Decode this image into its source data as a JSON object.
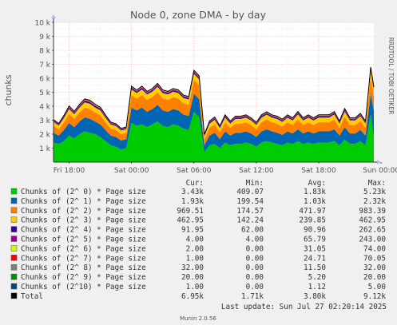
{
  "chart_data": {
    "type": "area",
    "title": "Node 0, zone DMA - by day",
    "ylabel": "chunks",
    "watermark": "RRDTOOL / TOBI OETIKER",
    "footer": "Munin 2.0.56",
    "ylim": [
      0,
      10000
    ],
    "yticks": [
      {
        "v": 1000,
        "label": "1 k"
      },
      {
        "v": 2000,
        "label": "2 k"
      },
      {
        "v": 3000,
        "label": "3 k"
      },
      {
        "v": 4000,
        "label": "4 k"
      },
      {
        "v": 5000,
        "label": "5 k"
      },
      {
        "v": 6000,
        "label": "6 k"
      },
      {
        "v": 7000,
        "label": "7 k"
      },
      {
        "v": 8000,
        "label": "8 k"
      },
      {
        "v": 9000,
        "label": "9 k"
      },
      {
        "v": 10000,
        "label": "10 k"
      }
    ],
    "x_range_hours": [
      16.5,
      47.3
    ],
    "xticks": [
      {
        "h": 18,
        "label": "Fri 18:00"
      },
      {
        "h": 24,
        "label": "Sat 00:00"
      },
      {
        "h": 30,
        "label": "Sat 06:00"
      },
      {
        "h": 36,
        "label": "Sat 12:00"
      },
      {
        "h": 42,
        "label": "Sat 18:00"
      },
      {
        "h": 48,
        "label": "Sun 00:00"
      }
    ],
    "x": [
      16.5,
      17,
      17.5,
      18,
      18.5,
      19,
      19.5,
      20,
      20.5,
      21,
      21.5,
      22,
      22.5,
      23,
      23.5,
      24,
      24.5,
      25,
      25.5,
      26,
      26.5,
      27,
      27.5,
      28,
      28.5,
      29,
      29.5,
      30,
      30.5,
      31,
      31.5,
      32,
      32.5,
      33,
      33.5,
      34,
      34.5,
      35,
      35.5,
      36,
      36.5,
      37,
      37.5,
      38,
      38.5,
      39,
      39.5,
      40,
      40.5,
      41,
      41.5,
      42,
      42.5,
      43,
      43.5,
      44,
      44.5,
      45,
      45.5,
      46,
      46.5,
      47,
      47.3
    ],
    "series": [
      {
        "name": "Chunks of (2^ 0) * Page size",
        "color": "#00cc00",
        "values": [
          1400,
          1300,
          1500,
          1900,
          1700,
          2000,
          2200,
          2100,
          2000,
          1800,
          1500,
          1200,
          1100,
          900,
          1000,
          2800,
          2600,
          2700,
          2500,
          2700,
          2900,
          2600,
          2500,
          2700,
          2600,
          2400,
          2300,
          3600,
          3200,
          700,
          1200,
          1300,
          1000,
          1400,
          1200,
          1300,
          1300,
          1400,
          1300,
          1100,
          1400,
          1500,
          1400,
          1300,
          1200,
          1400,
          1300,
          1500,
          1300,
          1400,
          1300,
          1400,
          1400,
          1400,
          1500,
          1200,
          1600,
          1300,
          1300,
          1500,
          1200,
          3400,
          1800
        ]
      },
      {
        "name": "Chunks of (2^ 1) * Page size",
        "color": "#0066b3",
        "values": [
          700,
          600,
          800,
          900,
          800,
          900,
          1000,
          1000,
          900,
          900,
          800,
          700,
          700,
          650,
          650,
          1100,
          1100,
          1200,
          1100,
          1100,
          1200,
          1100,
          1100,
          1100,
          1100,
          1000,
          1000,
          1300,
          1300,
          500,
          700,
          800,
          650,
          800,
          700,
          800,
          800,
          800,
          750,
          700,
          800,
          850,
          800,
          800,
          750,
          800,
          750,
          850,
          750,
          800,
          750,
          800,
          800,
          800,
          850,
          700,
          900,
          750,
          750,
          800,
          700,
          1500,
          1900
        ]
      },
      {
        "name": "Chunks of (2^ 2) * Page size",
        "color": "#ff8000",
        "values": [
          500,
          450,
          550,
          650,
          600,
          650,
          700,
          700,
          650,
          650,
          550,
          500,
          500,
          450,
          450,
          900,
          850,
          900,
          850,
          850,
          900,
          850,
          850,
          850,
          850,
          800,
          800,
          1000,
          1000,
          400,
          550,
          600,
          500,
          650,
          550,
          650,
          650,
          650,
          600,
          550,
          650,
          700,
          650,
          650,
          600,
          650,
          600,
          700,
          600,
          650,
          600,
          650,
          650,
          650,
          700,
          550,
          750,
          600,
          600,
          650,
          550,
          1200,
          1000
        ]
      },
      {
        "name": "Chunks of (2^ 3) * Page size",
        "color": "#ffcc00",
        "values": [
          280,
          260,
          300,
          350,
          330,
          360,
          380,
          380,
          360,
          360,
          320,
          290,
          280,
          260,
          260,
          400,
          390,
          400,
          390,
          390,
          400,
          390,
          390,
          390,
          390,
          380,
          380,
          420,
          420,
          240,
          310,
          330,
          280,
          340,
          310,
          340,
          340,
          340,
          330,
          310,
          340,
          350,
          340,
          340,
          330,
          340,
          330,
          360,
          330,
          340,
          330,
          340,
          340,
          340,
          360,
          310,
          370,
          330,
          330,
          340,
          310,
          460,
          440
        ]
      },
      {
        "name": "Chunks of (2^ 4) * Page size",
        "color": "#330099",
        "values": [
          70,
          65,
          75,
          85,
          80,
          88,
          95,
          95,
          90,
          90,
          82,
          74,
          72,
          68,
          68,
          95,
          92,
          95,
          92,
          92,
          95,
          92,
          92,
          92,
          92,
          90,
          90,
          98,
          98,
          66,
          78,
          82,
          72,
          84,
          78,
          84,
          84,
          84,
          82,
          78,
          84,
          86,
          84,
          84,
          82,
          84,
          82,
          88,
          82,
          84,
          82,
          84,
          84,
          84,
          88,
          78,
          90,
          82,
          82,
          84,
          78,
          100,
          95
        ]
      },
      {
        "name": "Chunks of (2^ 5) * Page size",
        "color": "#990099",
        "values": [
          40,
          45,
          50,
          60,
          55,
          60,
          70,
          70,
          65,
          60,
          55,
          50,
          45,
          40,
          40,
          60,
          60,
          65,
          60,
          60,
          65,
          60,
          60,
          60,
          60,
          55,
          55,
          70,
          70,
          30,
          45,
          50,
          40,
          50,
          45,
          50,
          50,
          50,
          48,
          45,
          50,
          52,
          50,
          50,
          48,
          50,
          48,
          55,
          48,
          50,
          48,
          50,
          50,
          50,
          55,
          45,
          58,
          48,
          48,
          50,
          45,
          60,
          60
        ]
      },
      {
        "name": "Chunks of (2^ 6) * Page size",
        "color": "#ccff00",
        "values": [
          20,
          18,
          22,
          28,
          25,
          28,
          32,
          32,
          30,
          28,
          25,
          22,
          20,
          18,
          18,
          30,
          28,
          30,
          28,
          28,
          30,
          28,
          28,
          28,
          28,
          26,
          26,
          34,
          34,
          14,
          22,
          24,
          20,
          24,
          22,
          24,
          24,
          24,
          23,
          22,
          24,
          25,
          24,
          24,
          23,
          24,
          23,
          26,
          23,
          24,
          23,
          24,
          24,
          24,
          26,
          22,
          28,
          23,
          23,
          24,
          22,
          30,
          30
        ]
      },
      {
        "name": "Chunks of (2^ 7) * Page size",
        "color": "#ff0000",
        "values": [
          15,
          14,
          17,
          22,
          20,
          22,
          25,
          25,
          24,
          22,
          20,
          17,
          15,
          14,
          14,
          24,
          22,
          24,
          22,
          22,
          24,
          22,
          22,
          22,
          22,
          20,
          20,
          26,
          26,
          10,
          17,
          18,
          15,
          18,
          17,
          18,
          18,
          18,
          17,
          17,
          18,
          19,
          18,
          18,
          17,
          18,
          17,
          20,
          17,
          18,
          17,
          18,
          18,
          18,
          20,
          17,
          21,
          17,
          17,
          18,
          17,
          24,
          24
        ]
      },
      {
        "name": "Chunks of (2^ 8) * Page size",
        "color": "#808080",
        "values": [
          10,
          10,
          12,
          14,
          13,
          14,
          15,
          15,
          14,
          14,
          13,
          12,
          11,
          10,
          10,
          15,
          14,
          15,
          14,
          14,
          15,
          14,
          14,
          14,
          14,
          13,
          13,
          16,
          16,
          8,
          12,
          12,
          10,
          12,
          12,
          12,
          12,
          12,
          12,
          12,
          12,
          13,
          12,
          12,
          12,
          12,
          12,
          13,
          12,
          12,
          12,
          12,
          12,
          12,
          13,
          12,
          14,
          12,
          12,
          12,
          12,
          16,
          16
        ]
      },
      {
        "name": "Chunks of (2^ 9) * Page size",
        "color": "#008f00",
        "values": [
          5,
          5,
          5,
          6,
          6,
          6,
          6,
          6,
          6,
          6,
          6,
          5,
          5,
          5,
          5,
          6,
          6,
          6,
          6,
          6,
          6,
          6,
          6,
          6,
          6,
          6,
          6,
          6,
          6,
          4,
          5,
          5,
          5,
          5,
          5,
          5,
          5,
          5,
          5,
          5,
          5,
          5,
          5,
          5,
          5,
          5,
          5,
          5,
          5,
          5,
          5,
          5,
          5,
          5,
          5,
          5,
          5,
          5,
          5,
          5,
          5,
          6,
          6
        ]
      },
      {
        "name": "Chunks of (2^10) * Page size",
        "color": "#00487d",
        "values": [
          1,
          1,
          1,
          2,
          2,
          2,
          2,
          2,
          2,
          2,
          2,
          1,
          1,
          1,
          1,
          2,
          2,
          2,
          2,
          2,
          2,
          2,
          2,
          2,
          2,
          2,
          2,
          2,
          2,
          1,
          1,
          1,
          1,
          1,
          1,
          1,
          1,
          1,
          1,
          1,
          1,
          1,
          1,
          1,
          1,
          1,
          1,
          1,
          1,
          1,
          1,
          1,
          1,
          1,
          1,
          1,
          1,
          1,
          1,
          1,
          1,
          2,
          2
        ]
      }
    ],
    "legend_headers": {
      "cur": "Cur:",
      "min": "Min:",
      "avg": "Avg:",
      "max": "Max:"
    },
    "legend": [
      {
        "name": "Chunks of (2^ 0) * Page size",
        "color": "#00cc00",
        "cur": "3.43k",
        "min": "409.07",
        "avg": "1.83k",
        "max": "5.23k"
      },
      {
        "name": "Chunks of (2^ 1) * Page size",
        "color": "#0066b3",
        "cur": "1.93k",
        "min": "199.54",
        "avg": "1.03k",
        "max": "2.32k"
      },
      {
        "name": "Chunks of (2^ 2) * Page size",
        "color": "#ff8000",
        "cur": "969.51",
        "min": "174.57",
        "avg": "471.97",
        "max": "983.39"
      },
      {
        "name": "Chunks of (2^ 3) * Page size",
        "color": "#ffcc00",
        "cur": "462.95",
        "min": "142.24",
        "avg": "239.85",
        "max": "462.95"
      },
      {
        "name": "Chunks of (2^ 4) * Page size",
        "color": "#330099",
        "cur": "91.95",
        "min": "62.00",
        "avg": "90.96",
        "max": "262.65"
      },
      {
        "name": "Chunks of (2^ 5) * Page size",
        "color": "#990099",
        "cur": "4.00",
        "min": "4.00",
        "avg": "65.79",
        "max": "243.00"
      },
      {
        "name": "Chunks of (2^ 6) * Page size",
        "color": "#ccff00",
        "cur": "2.00",
        "min": "0.00",
        "avg": "31.05",
        "max": "74.00"
      },
      {
        "name": "Chunks of (2^ 7) * Page size",
        "color": "#ff0000",
        "cur": "1.00",
        "min": "0.00",
        "avg": "24.71",
        "max": "70.05"
      },
      {
        "name": "Chunks of (2^ 8) * Page size",
        "color": "#808080",
        "cur": "32.00",
        "min": "0.00",
        "avg": "11.50",
        "max": "32.00"
      },
      {
        "name": "Chunks of (2^ 9) * Page size",
        "color": "#008f00",
        "cur": "20.00",
        "min": "0.00",
        "avg": "5.20",
        "max": "20.00"
      },
      {
        "name": "Chunks of (2^10) * Page size",
        "color": "#00487d",
        "cur": "1.00",
        "min": "0.00",
        "avg": "1.12",
        "max": "5.00"
      },
      {
        "name": "Total",
        "color": "#000000",
        "cur": "6.95k",
        "min": "1.71k",
        "avg": "3.80k",
        "max": "9.12k"
      }
    ],
    "last_update": "Last update: Sun Jul 27 02:20:14 2025",
    "grid": true,
    "legend_position": "bottom"
  }
}
